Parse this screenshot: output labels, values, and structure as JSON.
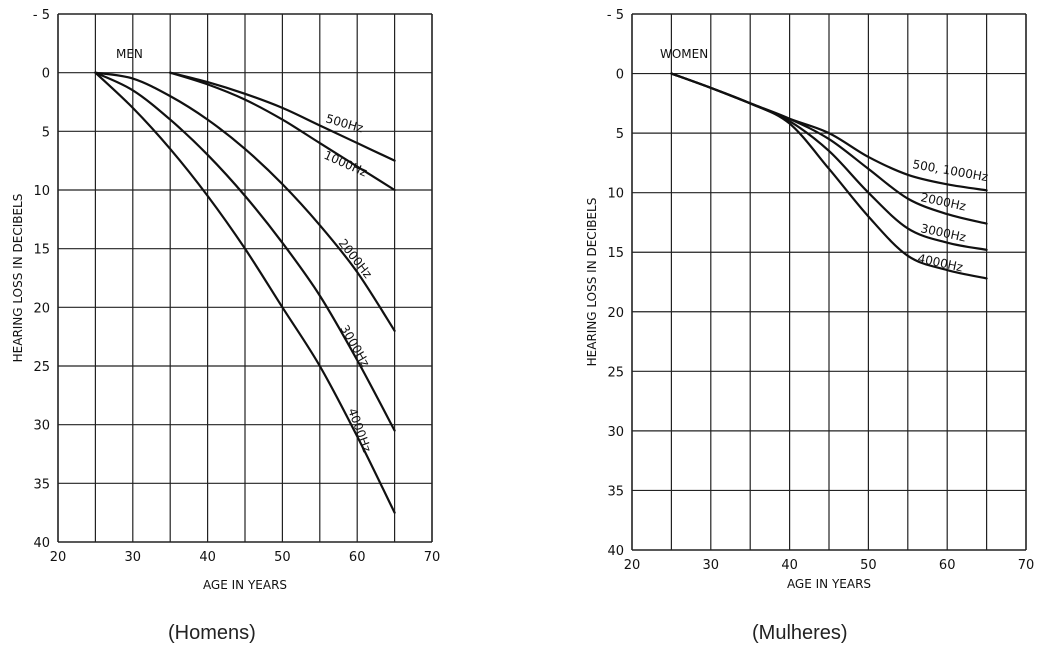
{
  "captions": {
    "left": "(Homens)",
    "right": "(Mulheres)"
  },
  "chart_data": [
    {
      "type": "line",
      "title": "MEN",
      "xlabel": "AGE IN YEARS",
      "ylabel": "HEARING LOSS IN DECIBELS",
      "xlim": [
        20,
        70
      ],
      "ylim": [
        -5,
        40
      ],
      "y_inverted": true,
      "grid": true,
      "x_ticks": [
        20,
        30,
        40,
        50,
        60,
        70
      ],
      "y_ticks": [
        "- 5",
        "0",
        "5",
        "10",
        "15",
        "20",
        "25",
        "30",
        "35",
        "40"
      ],
      "series": [
        {
          "name": "500Hz",
          "x": [
            35,
            40,
            45,
            50,
            55,
            60,
            65
          ],
          "y": [
            0,
            0.8,
            1.8,
            3.0,
            4.5,
            6.0,
            7.5
          ]
        },
        {
          "name": "1000Hz",
          "x": [
            35,
            40,
            45,
            50,
            55,
            60,
            65
          ],
          "y": [
            0,
            1.0,
            2.3,
            4.0,
            6.0,
            8.0,
            10.0
          ]
        },
        {
          "name": "2000Hz",
          "x": [
            25,
            30,
            35,
            40,
            45,
            50,
            55,
            60,
            65
          ],
          "y": [
            0,
            0.5,
            2.0,
            4.0,
            6.5,
            9.5,
            13.0,
            17.0,
            22.0
          ]
        },
        {
          "name": "3000Hz",
          "x": [
            25,
            30,
            35,
            40,
            45,
            50,
            55,
            60,
            65
          ],
          "y": [
            0,
            1.5,
            4.0,
            7.0,
            10.5,
            14.5,
            19.0,
            24.5,
            30.5
          ]
        },
        {
          "name": "4000Hz",
          "x": [
            25,
            30,
            35,
            40,
            45,
            50,
            55,
            60,
            65
          ],
          "y": [
            0,
            3.0,
            6.5,
            10.5,
            15.0,
            20.0,
            25.0,
            31.0,
            37.5
          ]
        }
      ]
    },
    {
      "type": "line",
      "title": "WOMEN",
      "xlabel": "AGE IN YEARS",
      "ylabel": "HEARING LOSS IN DECIBELS",
      "xlim": [
        20,
        70
      ],
      "ylim": [
        -5,
        40
      ],
      "y_inverted": true,
      "grid": true,
      "x_ticks": [
        20,
        30,
        40,
        50,
        60,
        70
      ],
      "y_ticks": [
        "- 5",
        "0",
        "5",
        "10",
        "15",
        "20",
        "25",
        "30",
        "35",
        "40"
      ],
      "series": [
        {
          "name": "500, 1000Hz",
          "x": [
            25,
            30,
            35,
            40,
            45,
            50,
            55,
            60,
            65
          ],
          "y": [
            0,
            1.2,
            2.5,
            3.8,
            5.0,
            7.0,
            8.5,
            9.3,
            9.8
          ]
        },
        {
          "name": "2000Hz",
          "x": [
            25,
            30,
            35,
            40,
            45,
            50,
            55,
            60,
            65
          ],
          "y": [
            0,
            1.2,
            2.5,
            3.8,
            5.5,
            8.0,
            10.5,
            11.8,
            12.6
          ]
        },
        {
          "name": "3000Hz",
          "x": [
            25,
            30,
            35,
            40,
            45,
            50,
            55,
            60,
            65
          ],
          "y": [
            0,
            1.2,
            2.5,
            4.0,
            6.5,
            10.0,
            13.0,
            14.2,
            14.8
          ]
        },
        {
          "name": "4000Hz",
          "x": [
            25,
            30,
            35,
            40,
            45,
            50,
            55,
            60,
            65
          ],
          "y": [
            0,
            1.2,
            2.5,
            4.2,
            8.0,
            12.0,
            15.3,
            16.5,
            17.2
          ]
        }
      ]
    }
  ]
}
